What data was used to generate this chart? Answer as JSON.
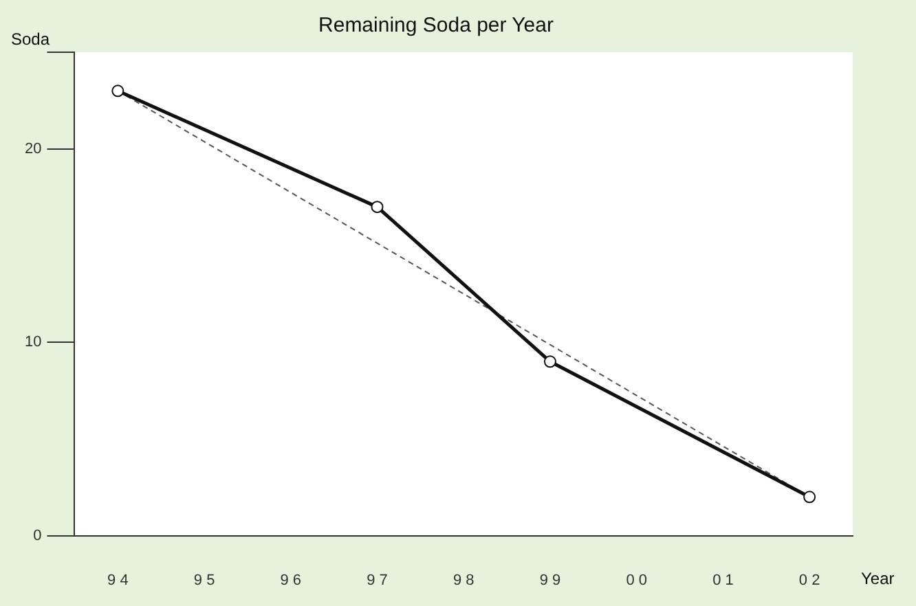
{
  "chart_data": {
    "type": "line",
    "title": "Remaining Soda per Year",
    "xlabel": "Year",
    "ylabel": "Soda",
    "categories": [
      "9 4",
      "9 5",
      "9 6",
      "9 7",
      "9 8",
      "9 9",
      "0 0",
      "0 1",
      "0 2"
    ],
    "series": [
      {
        "x": [
          "9 4",
          "9 7",
          "9 9",
          "0 2"
        ],
        "values": [
          23,
          17,
          9,
          2
        ],
        "color": "#111111",
        "marker": "circle",
        "line_style": "solid"
      },
      {
        "x": [
          "9 4",
          "0 2"
        ],
        "values": [
          23,
          2
        ],
        "color": "#555555",
        "marker": "none",
        "line_style": "dashed"
      }
    ],
    "ylim": [
      0,
      25
    ],
    "yticks": [
      0,
      10,
      20,
      {
        "value": 25,
        "label": null
      }
    ],
    "grid": false,
    "legend": false
  }
}
